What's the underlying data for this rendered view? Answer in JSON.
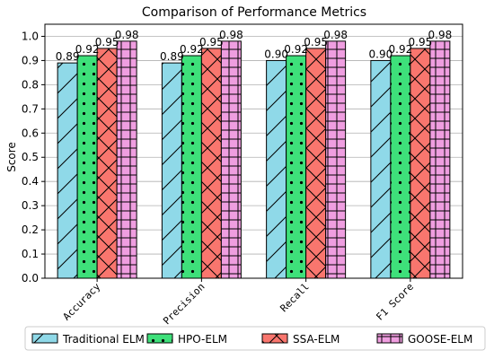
{
  "chart_data": {
    "type": "bar",
    "title": "Comparison of Performance Metrics",
    "xlabel": "",
    "ylabel": "Score",
    "ylim": [
      0,
      1.05
    ],
    "yticks": [
      "0.0",
      "0.1",
      "0.2",
      "0.3",
      "0.4",
      "0.5",
      "0.6",
      "0.7",
      "0.8",
      "0.9",
      "1.0"
    ],
    "categories": [
      "Accuracy",
      "Precision",
      "Recall",
      "F1 Score"
    ],
    "grid": "horizontal",
    "legend_position": "bottom",
    "series": [
      {
        "name": "Traditional ELM",
        "values": [
          0.89,
          0.89,
          0.9,
          0.9
        ],
        "labels": [
          "0.89",
          "0.89",
          "0.90",
          "0.90"
        ],
        "color": "#8fd9e8",
        "hatch": "diagonal"
      },
      {
        "name": "HPO-ELM",
        "values": [
          0.92,
          0.92,
          0.92,
          0.92
        ],
        "labels": [
          "0.92",
          "0.92",
          "0.92",
          "0.92"
        ],
        "color": "#3ee07a",
        "hatch": "dots"
      },
      {
        "name": "SSA-ELM",
        "values": [
          0.95,
          0.95,
          0.95,
          0.95
        ],
        "labels": [
          "0.95",
          "0.95",
          "0.95",
          "0.95"
        ],
        "color": "#f9766e",
        "hatch": "crosshatch"
      },
      {
        "name": "GOOSE-ELM",
        "values": [
          0.98,
          0.98,
          0.98,
          0.98
        ],
        "labels": [
          "0.98",
          "0.98",
          "0.98",
          "0.98"
        ],
        "color": "#ef9ee0",
        "hatch": "grid"
      }
    ]
  }
}
